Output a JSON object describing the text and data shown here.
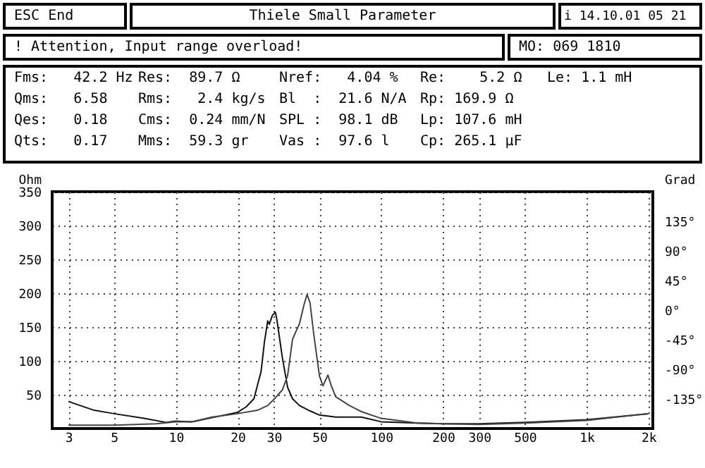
{
  "chart_data": {
    "type": "line",
    "title": "Thiele Small Parameter",
    "annotations": [
      "ESC End",
      "i 14.10.01 05 21",
      "! Attention, Input range overload!",
      "MO: 069 1810",
      "Fms:   42.2 Hz",
      "Qms:   6.58",
      "Qes:   0.18",
      "Qts:   0.17",
      "Res:  89.7 Ω",
      "Rms:   2.4 kg/s",
      "Cms:  0.24 mm/N",
      "Mms:  59.3 gr",
      "Nref:   4.04 %",
      "Bl  :  21.6 N/A",
      "SPL :  98.1 dB",
      "Vas :  97.6 l",
      "Re:    5.2 Ω",
      "Rp: 169.9 Ω",
      "Lp: 107.6 mH",
      "Cp: 265.1 µF",
      "Le: 1.1 mH"
    ],
    "ylabel": "Ohm",
    "y2label": "Grad",
    "log": "x",
    "xlim": [
      2.5,
      2100
    ],
    "xticks": [
      3,
      5,
      10,
      20,
      30,
      50,
      100,
      200,
      300,
      500,
      {
        "value": 1000,
        "label": "1k"
      },
      {
        "value": 2000,
        "label": "2k"
      }
    ],
    "ylim": [
      0,
      350
    ],
    "yticks": [
      50,
      100,
      150,
      200,
      250,
      300,
      350
    ],
    "y2lim": [
      -180,
      180
    ],
    "y2ticks": [
      {
        "value": -135,
        "label": "-135°"
      },
      {
        "value": -90,
        "label": "-90°"
      },
      {
        "value": -45,
        "label": "-45°"
      },
      {
        "value": 0,
        "label": "0°"
      },
      {
        "value": 45,
        "label": "45°"
      },
      {
        "value": 90,
        "label": "90°"
      },
      {
        "value": 135,
        "label": "135°"
      }
    ],
    "grid": true,
    "line_style": "solid",
    "series": [
      {
        "color": "#111111",
        "x": [
          3,
          4,
          5,
          7,
          9,
          10,
          12,
          15,
          20,
          22,
          24,
          26,
          27,
          28,
          28.5,
          29.5,
          30.5,
          31,
          33,
          35,
          37,
          40,
          45,
          50,
          60,
          80,
          100,
          150,
          200,
          300,
          500,
          1000,
          2000
        ],
        "values": [
          40,
          27,
          22,
          15,
          9,
          11,
          10,
          16,
          24,
          32,
          44,
          84,
          128,
          159,
          154,
          167,
          172,
          162,
          105,
          61,
          44,
          34,
          26,
          20,
          17,
          17,
          10,
          8,
          7,
          7,
          9,
          13,
          22
        ]
      },
      {
        "color": "#444444",
        "x": [
          3,
          5,
          8,
          10,
          12,
          15,
          20,
          25,
          28,
          30,
          33,
          35,
          37,
          40,
          42,
          43.5,
          45,
          47,
          50,
          52,
          55,
          57,
          60,
          70,
          80,
          100,
          150,
          200,
          300,
          500,
          1000,
          2000
        ],
        "values": [
          5,
          5,
          7,
          10,
          10,
          17,
          22,
          27,
          34,
          43,
          57,
          78,
          132,
          155,
          182,
          198,
          186,
          138,
          78,
          63,
          79,
          64,
          47,
          34,
          25,
          15,
          8,
          7,
          6,
          8,
          12,
          22
        ]
      }
    ]
  }
}
